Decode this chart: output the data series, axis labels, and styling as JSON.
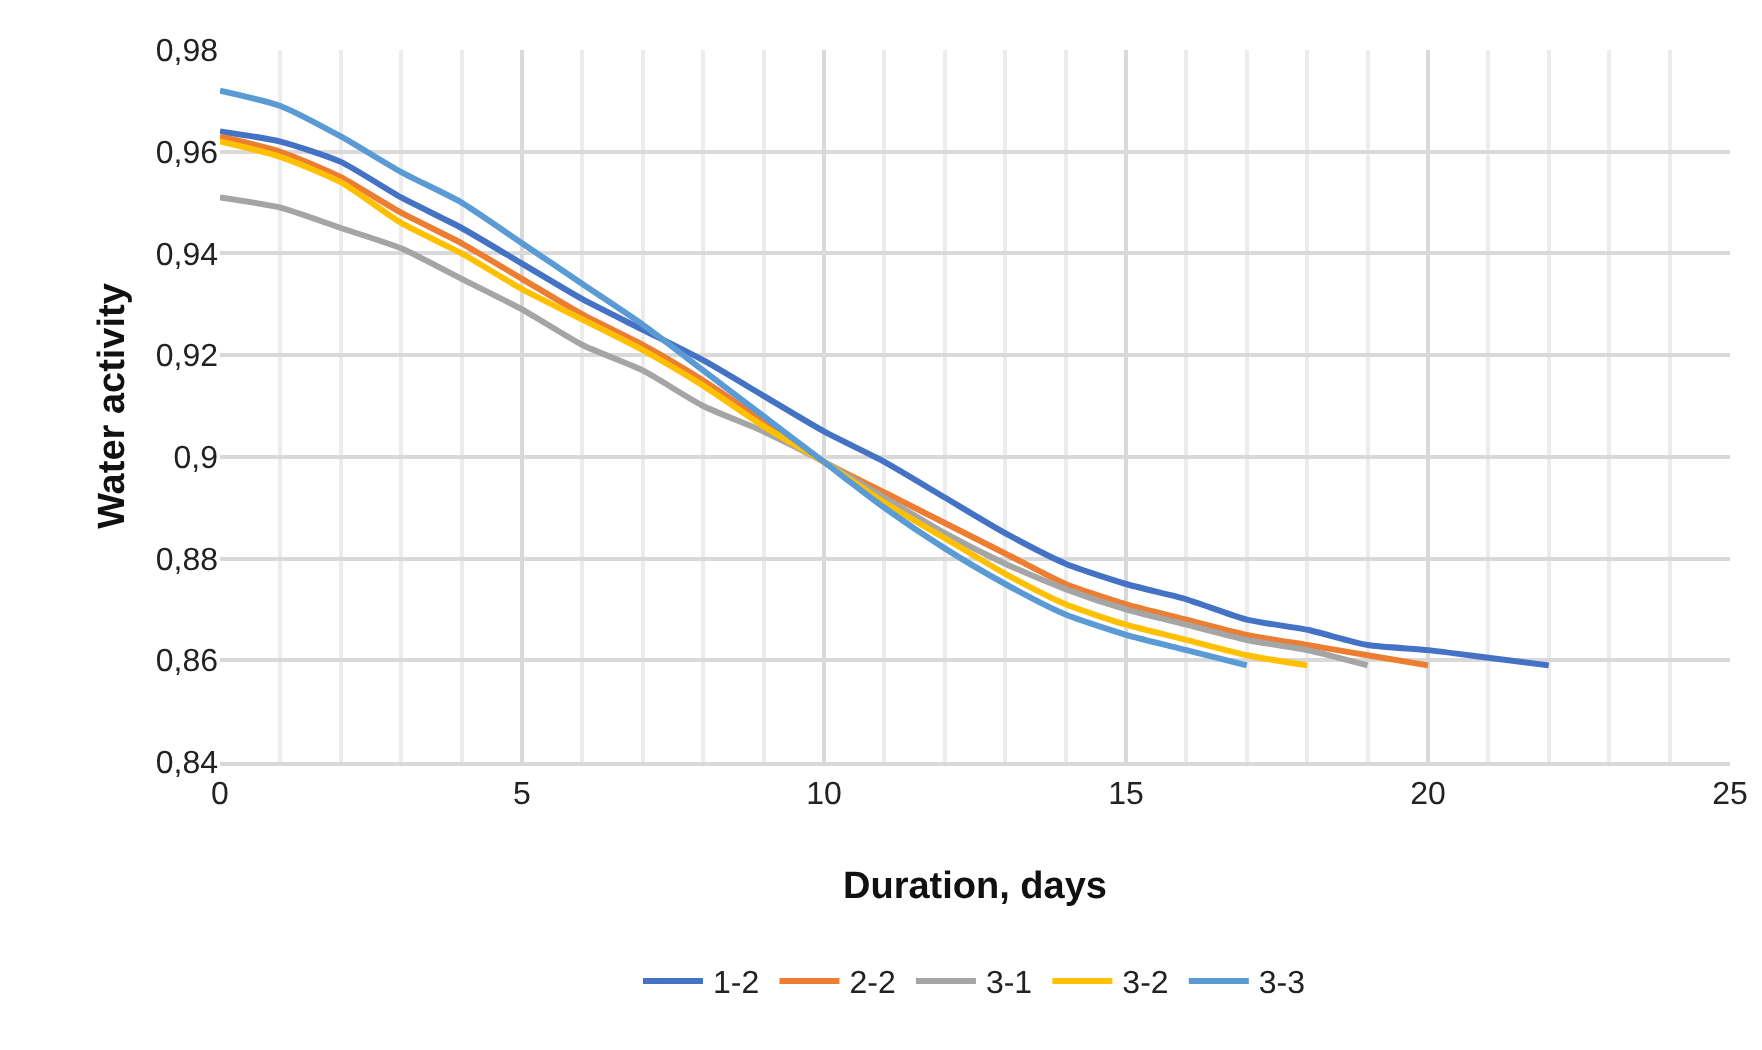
{
  "chart_data": {
    "type": "line",
    "xlabel": "Duration, days",
    "ylabel": "Water activity",
    "xlim": [
      0,
      25
    ],
    "xticks": [
      0,
      5,
      10,
      15,
      20,
      25
    ],
    "ylim": [
      0.84,
      0.98
    ],
    "yticks": [
      {
        "value": 0.84,
        "label": "0,84"
      },
      {
        "value": 0.86,
        "label": "0,86"
      },
      {
        "value": 0.88,
        "label": "0,88"
      },
      {
        "value": 0.9,
        "label": "0,9"
      },
      {
        "value": 0.92,
        "label": "0,92"
      },
      {
        "value": 0.94,
        "label": "0,94"
      },
      {
        "value": 0.96,
        "label": "0,96"
      },
      {
        "value": 0.98,
        "label": "0,98"
      }
    ],
    "grid": true,
    "legend": "bottom",
    "marker": "none",
    "line_style": "solid",
    "series": [
      {
        "name": "1-2",
        "color": "#4472c4",
        "x": [
          0,
          1,
          2,
          3,
          4,
          5,
          6,
          7,
          8,
          9,
          10,
          11,
          12,
          13,
          14,
          15,
          16,
          17,
          18,
          19,
          20,
          21,
          22
        ],
        "values": [
          0.964,
          0.962,
          0.958,
          0.951,
          0.945,
          0.938,
          0.931,
          0.925,
          0.919,
          0.912,
          0.905,
          0.899,
          0.892,
          0.885,
          0.879,
          0.875,
          0.872,
          0.868,
          0.866,
          0.863,
          0.862,
          0.8605,
          0.859
        ]
      },
      {
        "name": "2-2",
        "color": "#ed7d31",
        "x": [
          0,
          1,
          2,
          3,
          4,
          5,
          6,
          7,
          8,
          9,
          10,
          11,
          12,
          13,
          14,
          15,
          16,
          17,
          18,
          19,
          20
        ],
        "values": [
          0.963,
          0.96,
          0.955,
          0.948,
          0.942,
          0.935,
          0.928,
          0.922,
          0.915,
          0.907,
          0.899,
          0.893,
          0.887,
          0.881,
          0.875,
          0.871,
          0.868,
          0.865,
          0.863,
          0.861,
          0.859
        ]
      },
      {
        "name": "3-1",
        "color": "#a5a5a5",
        "x": [
          0,
          1,
          2,
          3,
          4,
          5,
          6,
          7,
          8,
          9,
          10,
          11,
          12,
          13,
          14,
          15,
          16,
          17,
          18,
          19
        ],
        "values": [
          0.951,
          0.949,
          0.945,
          0.941,
          0.935,
          0.929,
          0.922,
          0.917,
          0.91,
          0.905,
          0.899,
          0.892,
          0.885,
          0.879,
          0.874,
          0.87,
          0.867,
          0.864,
          0.862,
          0.859
        ]
      },
      {
        "name": "3-2",
        "color": "#ffc000",
        "x": [
          0,
          1,
          2,
          3,
          4,
          5,
          6,
          7,
          8,
          9,
          10,
          11,
          12,
          13,
          14,
          15,
          16,
          17,
          18
        ],
        "values": [
          0.962,
          0.959,
          0.954,
          0.946,
          0.94,
          0.933,
          0.927,
          0.921,
          0.914,
          0.906,
          0.899,
          0.891,
          0.884,
          0.877,
          0.871,
          0.867,
          0.864,
          0.861,
          0.859
        ]
      },
      {
        "name": "3-3",
        "color": "#5b9bd5",
        "x": [
          0,
          1,
          2,
          3,
          4,
          5,
          6,
          7,
          8,
          9,
          10,
          11,
          12,
          13,
          14,
          15,
          16,
          17
        ],
        "values": [
          0.972,
          0.969,
          0.963,
          0.956,
          0.95,
          0.942,
          0.934,
          0.926,
          0.917,
          0.908,
          0.899,
          0.89,
          0.882,
          0.875,
          0.869,
          0.865,
          0.862,
          0.859
        ]
      }
    ]
  }
}
